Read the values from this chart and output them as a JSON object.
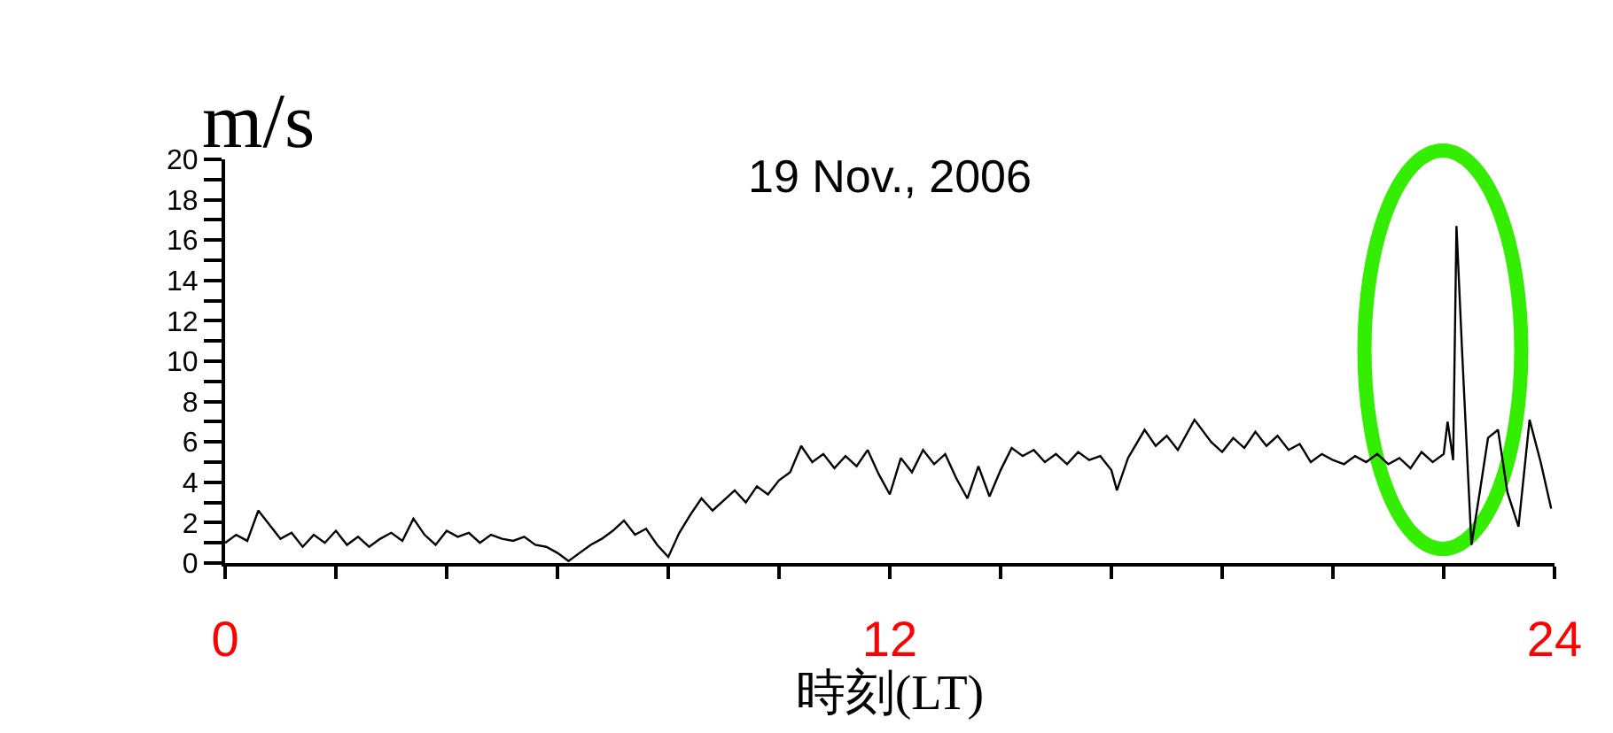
{
  "chart_data": {
    "type": "line",
    "title": "19 Nov., 2006",
    "ylabel": "m/s",
    "xlabel": "時刻(LT)",
    "xlim": [
      0,
      24
    ],
    "xticks": [
      0,
      {
        "value": 2,
        "label": null
      },
      {
        "value": 4,
        "label": null
      },
      {
        "value": 6,
        "label": null
      },
      {
        "value": 8,
        "label": null
      },
      {
        "value": 10,
        "label": null
      },
      12,
      {
        "value": 14,
        "label": null
      },
      {
        "value": 16,
        "label": null
      },
      {
        "value": 18,
        "label": null
      },
      {
        "value": 20,
        "label": null
      },
      {
        "value": 22,
        "label": null
      },
      24
    ],
    "ylim": [
      0,
      20
    ],
    "yticks": [
      0,
      {
        "value": 1,
        "label": null
      },
      2,
      {
        "value": 3,
        "label": null
      },
      4,
      {
        "value": 5,
        "label": null
      },
      6,
      {
        "value": 7,
        "label": null
      },
      8,
      {
        "value": 9,
        "label": null
      },
      10,
      {
        "value": 11,
        "label": null
      },
      12,
      {
        "value": 13,
        "label": null
      },
      14,
      {
        "value": 15,
        "label": null
      },
      16,
      {
        "value": 17,
        "label": null
      },
      18,
      {
        "value": 19,
        "label": null
      },
      20
    ],
    "marker": "none",
    "line_style": "solid",
    "series": [
      {
        "color": "#000000",
        "x": [
          0,
          0.2,
          0.4,
          0.6,
          0.8,
          1.0,
          1.2,
          1.4,
          1.6,
          1.8,
          2.0,
          2.2,
          2.4,
          2.6,
          2.8,
          3.0,
          3.2,
          3.4,
          3.6,
          3.8,
          4.0,
          4.2,
          4.4,
          4.6,
          4.8,
          5.0,
          5.2,
          5.4,
          5.6,
          5.8,
          6.0,
          6.2,
          6.4,
          6.6,
          6.8,
          7.0,
          7.2,
          7.4,
          7.6,
          7.8,
          8.0,
          8.2,
          8.4,
          8.6,
          8.8,
          9.0,
          9.2,
          9.4,
          9.6,
          9.8,
          10.0,
          10.2,
          10.4,
          10.6,
          10.8,
          11.0,
          11.2,
          11.4,
          11.6,
          11.8,
          12.0,
          12.2,
          12.4,
          12.6,
          12.8,
          13.0,
          13.2,
          13.4,
          13.6,
          13.8,
          14.0,
          14.2,
          14.4,
          14.6,
          14.8,
          15.0,
          15.2,
          15.4,
          15.6,
          15.8,
          16.0,
          16.1,
          16.3,
          16.6,
          16.8,
          17.0,
          17.2,
          17.5,
          17.8,
          18.0,
          18.2,
          18.4,
          18.6,
          18.8,
          19.0,
          19.2,
          19.4,
          19.6,
          19.8,
          20.0,
          20.2,
          20.4,
          20.6,
          20.8,
          21.0,
          21.2,
          21.4,
          21.6,
          21.8,
          22.0,
          22.07,
          22.17,
          22.23,
          22.33,
          22.5,
          22.65,
          22.8,
          22.98,
          23.15,
          23.35,
          23.55,
          23.75,
          23.94
        ],
        "values": [
          1.0,
          1.4,
          1.1,
          2.6,
          1.9,
          1.2,
          1.5,
          0.8,
          1.4,
          1.0,
          1.6,
          0.9,
          1.3,
          0.8,
          1.2,
          1.5,
          1.1,
          2.2,
          1.4,
          0.9,
          1.6,
          1.3,
          1.5,
          1.0,
          1.4,
          1.2,
          1.1,
          1.3,
          0.9,
          0.8,
          0.5,
          0.1,
          0.5,
          0.9,
          1.2,
          1.6,
          2.1,
          1.4,
          1.7,
          0.9,
          0.3,
          1.5,
          2.4,
          3.2,
          2.6,
          3.1,
          3.6,
          3.0,
          3.8,
          3.4,
          4.1,
          4.5,
          5.8,
          5.0,
          5.4,
          4.7,
          5.3,
          4.8,
          5.6,
          4.4,
          3.4,
          5.2,
          4.5,
          5.6,
          4.9,
          5.4,
          4.2,
          3.2,
          4.8,
          3.3,
          4.6,
          5.7,
          5.3,
          5.6,
          5.0,
          5.4,
          4.9,
          5.5,
          5.1,
          5.3,
          4.6,
          3.6,
          5.2,
          6.6,
          5.8,
          6.3,
          5.6,
          7.1,
          6.0,
          5.5,
          6.2,
          5.7,
          6.5,
          5.8,
          6.3,
          5.6,
          5.9,
          5.0,
          5.4,
          5.1,
          4.9,
          5.3,
          5.0,
          5.4,
          4.9,
          5.2,
          4.7,
          5.5,
          5.0,
          5.4,
          7.0,
          5.1,
          16.7,
          10.6,
          0.9,
          3.5,
          6.2,
          6.6,
          3.5,
          1.8,
          7.1,
          5.0,
          2.7
        ]
      }
    ]
  }
}
